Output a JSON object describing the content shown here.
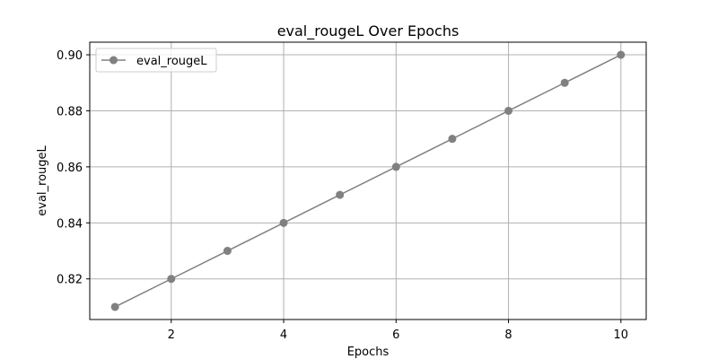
{
  "chart_data": {
    "type": "line",
    "title": "eval_rougeL Over Epochs",
    "xlabel": "Epochs",
    "ylabel": "eval_rougeL",
    "x": [
      1,
      2,
      3,
      4,
      5,
      6,
      7,
      8,
      9,
      10
    ],
    "series": [
      {
        "name": "eval_rougeL",
        "values": [
          0.81,
          0.82,
          0.83,
          0.84,
          0.85,
          0.86,
          0.87,
          0.88,
          0.89,
          0.9
        ],
        "color": "#808080",
        "marker": "circle"
      }
    ],
    "xlim": [
      0.55,
      10.45
    ],
    "ylim": [
      0.8055,
      0.9045
    ],
    "xticks": [
      2,
      4,
      6,
      8,
      10
    ],
    "yticks": [
      0.82,
      0.84,
      0.86,
      0.88,
      0.9
    ],
    "ytick_labels": [
      "0.82",
      "0.84",
      "0.86",
      "0.88",
      "0.90"
    ],
    "grid": true,
    "legend_position": "top-left",
    "grid_color": "#b0b0b0"
  }
}
